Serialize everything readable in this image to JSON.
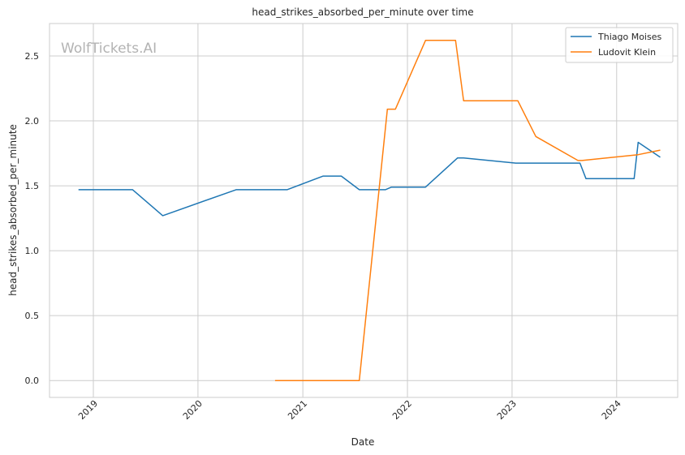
{
  "chart_data": {
    "type": "line",
    "title": "head_strikes_absorbed_per_minute over time",
    "xlabel": "Date",
    "ylabel": "head_strikes_absorbed_per_minute",
    "watermark": "WolfTickets.AI",
    "xlim": [
      "2018-08-01",
      "2024-08-01"
    ],
    "ylim": [
      -0.13,
      2.75
    ],
    "x_ticks": [
      "2019-01-01",
      "2020-01-01",
      "2021-01-01",
      "2022-01-01",
      "2023-01-01",
      "2024-01-01"
    ],
    "x_tick_labels": [
      "2019",
      "2020",
      "2021",
      "2022",
      "2023",
      "2024"
    ],
    "y_ticks": [
      0.0,
      0.5,
      1.0,
      1.5,
      2.0,
      2.5
    ],
    "y_tick_labels": [
      "0.0",
      "0.5",
      "1.0",
      "1.5",
      "2.0",
      "2.5"
    ],
    "grid": true,
    "legend_position": "top-right",
    "series": [
      {
        "name": "Thiago Moises",
        "color": "#1f77b4",
        "points": [
          [
            "2018-11-10",
            1.47
          ],
          [
            "2019-05-18",
            1.47
          ],
          [
            "2019-08-31",
            1.27
          ],
          [
            "2020-05-13",
            1.47
          ],
          [
            "2020-11-07",
            1.47
          ],
          [
            "2021-03-13",
            1.575
          ],
          [
            "2021-05-15",
            1.575
          ],
          [
            "2021-07-17",
            1.47
          ],
          [
            "2021-10-16",
            1.47
          ],
          [
            "2021-11-06",
            1.49
          ],
          [
            "2022-03-05",
            1.49
          ],
          [
            "2022-06-25",
            1.715
          ],
          [
            "2022-07-16",
            1.715
          ],
          [
            "2023-01-14",
            1.675
          ],
          [
            "2023-08-26",
            1.675
          ],
          [
            "2023-09-16",
            1.555
          ],
          [
            "2024-03-02",
            1.555
          ],
          [
            "2024-03-16",
            1.835
          ],
          [
            "2024-06-01",
            1.72
          ]
        ]
      },
      {
        "name": "Ludovit Klein",
        "color": "#ff7f0e",
        "points": [
          [
            "2020-09-26",
            0.0
          ],
          [
            "2021-07-17",
            0.0
          ],
          [
            "2021-10-23",
            2.09
          ],
          [
            "2021-11-20",
            2.09
          ],
          [
            "2022-03-05",
            2.62
          ],
          [
            "2022-06-18",
            2.62
          ],
          [
            "2022-07-16",
            2.155
          ],
          [
            "2023-01-21",
            2.155
          ],
          [
            "2023-03-25",
            1.88
          ],
          [
            "2023-08-19",
            1.695
          ],
          [
            "2023-09-02",
            1.695
          ],
          [
            "2024-03-16",
            1.74
          ],
          [
            "2024-06-01",
            1.775
          ]
        ]
      }
    ]
  }
}
